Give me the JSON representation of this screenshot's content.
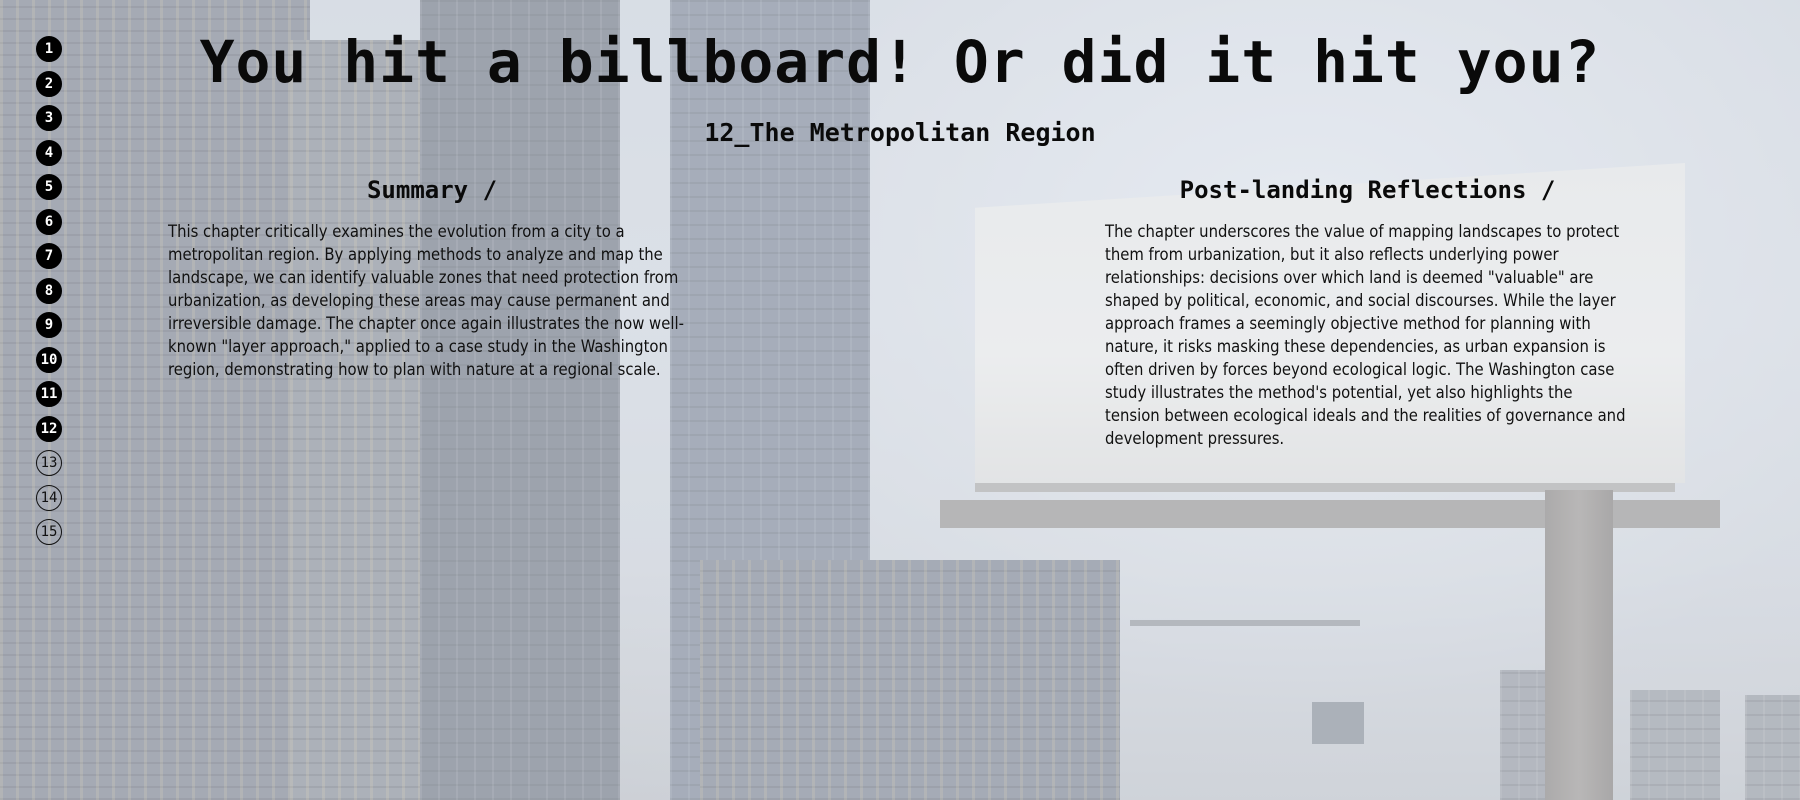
{
  "page": {
    "title": "You hit a billboard! Or did it hit you?",
    "subtitle": "12_The Metropolitan Region"
  },
  "chapter_nav": {
    "items": [
      {
        "label": "1",
        "state": "filled"
      },
      {
        "label": "2",
        "state": "filled"
      },
      {
        "label": "3",
        "state": "filled"
      },
      {
        "label": "4",
        "state": "filled"
      },
      {
        "label": "5",
        "state": "filled"
      },
      {
        "label": "6",
        "state": "filled"
      },
      {
        "label": "7",
        "state": "filled"
      },
      {
        "label": "8",
        "state": "filled"
      },
      {
        "label": "9",
        "state": "filled"
      },
      {
        "label": "10",
        "state": "filled"
      },
      {
        "label": "11",
        "state": "filled"
      },
      {
        "label": "12",
        "state": "filled"
      },
      {
        "label": "13",
        "state": "outline"
      },
      {
        "label": "14",
        "state": "outline"
      },
      {
        "label": "15",
        "state": "outline"
      }
    ]
  },
  "summary": {
    "heading": "Summary /",
    "body": "This chapter critically examines the evolution from a city to a metropolitan region. By applying methods to analyze and map the landscape, we can identify valuable zones that need protection from urbanization, as developing these areas may cause permanent and irreversible damage. The chapter once again illustrates the now well-known \"layer approach,\" applied to a case study in the Washington region, demonstrating how to plan with nature at a regional scale."
  },
  "reflections": {
    "heading": "Post-landing Reflections /",
    "body": "The chapter underscores the value of mapping landscapes to protect them from urbanization, but it also reflects underlying power relationships: decisions over which land is deemed \"valuable\" are shaped by political, economic, and social discourses. While the layer approach frames a seemingly objective method for planning with nature, it risks masking these dependencies, as urban expansion is often driven by forces beyond ecological logic. The Washington case study illustrates the method's potential, yet also highlights the tension between ecological ideals and the realities of governance and development pressures."
  },
  "colors": {
    "text": "#0a0a0a",
    "nav_filled_bg": "#000000",
    "nav_filled_text": "#ffffff",
    "nav_outline_border": "#111111"
  },
  "background": {
    "scene": "city-skyline-with-billboard"
  }
}
